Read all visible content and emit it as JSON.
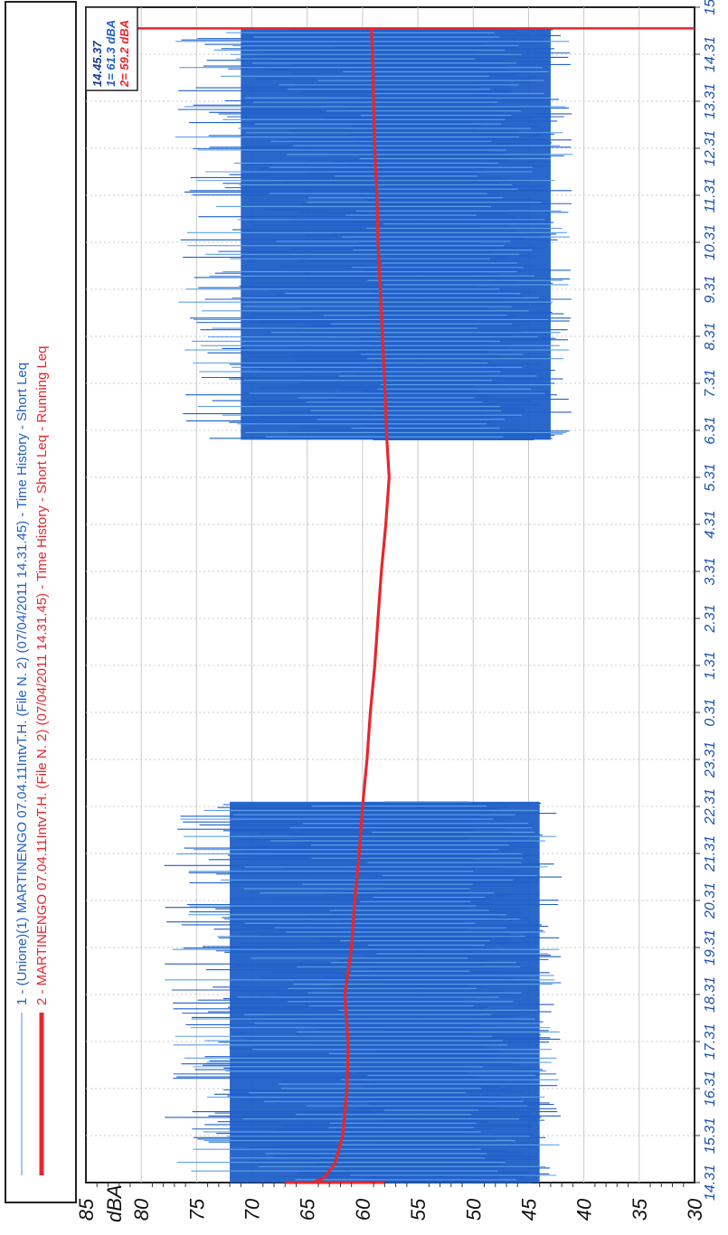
{
  "chart_data": {
    "type": "line",
    "orientation": "rotated-90",
    "title": "",
    "ylabel": "dBA",
    "ylim": [
      30,
      85
    ],
    "y_ticks": [
      "30",
      "35",
      "40",
      "45",
      "50",
      "55",
      "60",
      "65",
      "70",
      "75",
      "80",
      "85"
    ],
    "x_ticks": [
      "14.31",
      "15.31",
      "16.31",
      "17.31",
      "18.31",
      "19.31",
      "20.31",
      "21.31",
      "22.31",
      "23.31",
      "0.31",
      "1.31",
      "2.31",
      "3.31",
      "4.31",
      "5.31",
      "6.31",
      "7.31",
      "8.31",
      "9.31",
      "10.31",
      "11.31",
      "12.31",
      "13.31",
      "14.31",
      "15"
    ],
    "grid": true,
    "legend_placement": "left",
    "series": [
      {
        "name": "1 - (Unione)(1) MARTINENGO 07.04.11IntvT.H. (File N. 2) (07/04/2011 14.31.45) - Time History - Short Leq",
        "color": "#1f5fc8",
        "kind": "envelope",
        "segments": [
          {
            "x_start": 0.0,
            "x_end": 8.1,
            "mean": 52,
            "low": 42,
            "high": 78
          },
          {
            "x_start": 15.8,
            "x_end": 24.55,
            "mean": 52,
            "low": 41,
            "high": 77
          }
        ]
      },
      {
        "name": "2 - MARTINENGO 07.04.11IntvT.H. (File N. 2) (07/04/2011 14.31.45) - Time History - Short Leq - Running Leq",
        "color": "#e8262c",
        "kind": "line",
        "x": [
          0.0,
          0.1,
          0.4,
          1.0,
          2.0,
          3.0,
          4.0,
          5.0,
          6.0,
          7.0,
          8.0,
          9.0,
          10.0,
          11.0,
          12.0,
          13.0,
          14.0,
          15.0,
          15.8,
          17.0,
          18.0,
          19.0,
          20.0,
          21.0,
          22.0,
          23.0,
          24.0,
          24.55
        ],
        "values": [
          64.5,
          63.5,
          62.5,
          61.8,
          61.4,
          61.3,
          61.6,
          61.0,
          60.7,
          60.3,
          60.0,
          59.6,
          59.3,
          58.9,
          58.6,
          58.3,
          57.9,
          57.6,
          57.8,
          58.0,
          58.2,
          58.4,
          58.6,
          58.7,
          58.9,
          59.0,
          59.1,
          59.2
        ]
      }
    ],
    "cursor": {
      "time": "14.45.37",
      "value_1": "1=  61.3 dBA",
      "value_2": "2=  59.2 dBA",
      "x": 24.55
    }
  },
  "colors": {
    "series1": "#1f5fc8",
    "series1_light": "#5ea0e8",
    "series2": "#e8262c",
    "grid": "#c8c8c8",
    "axis_tick_x": "#1a50b0"
  }
}
